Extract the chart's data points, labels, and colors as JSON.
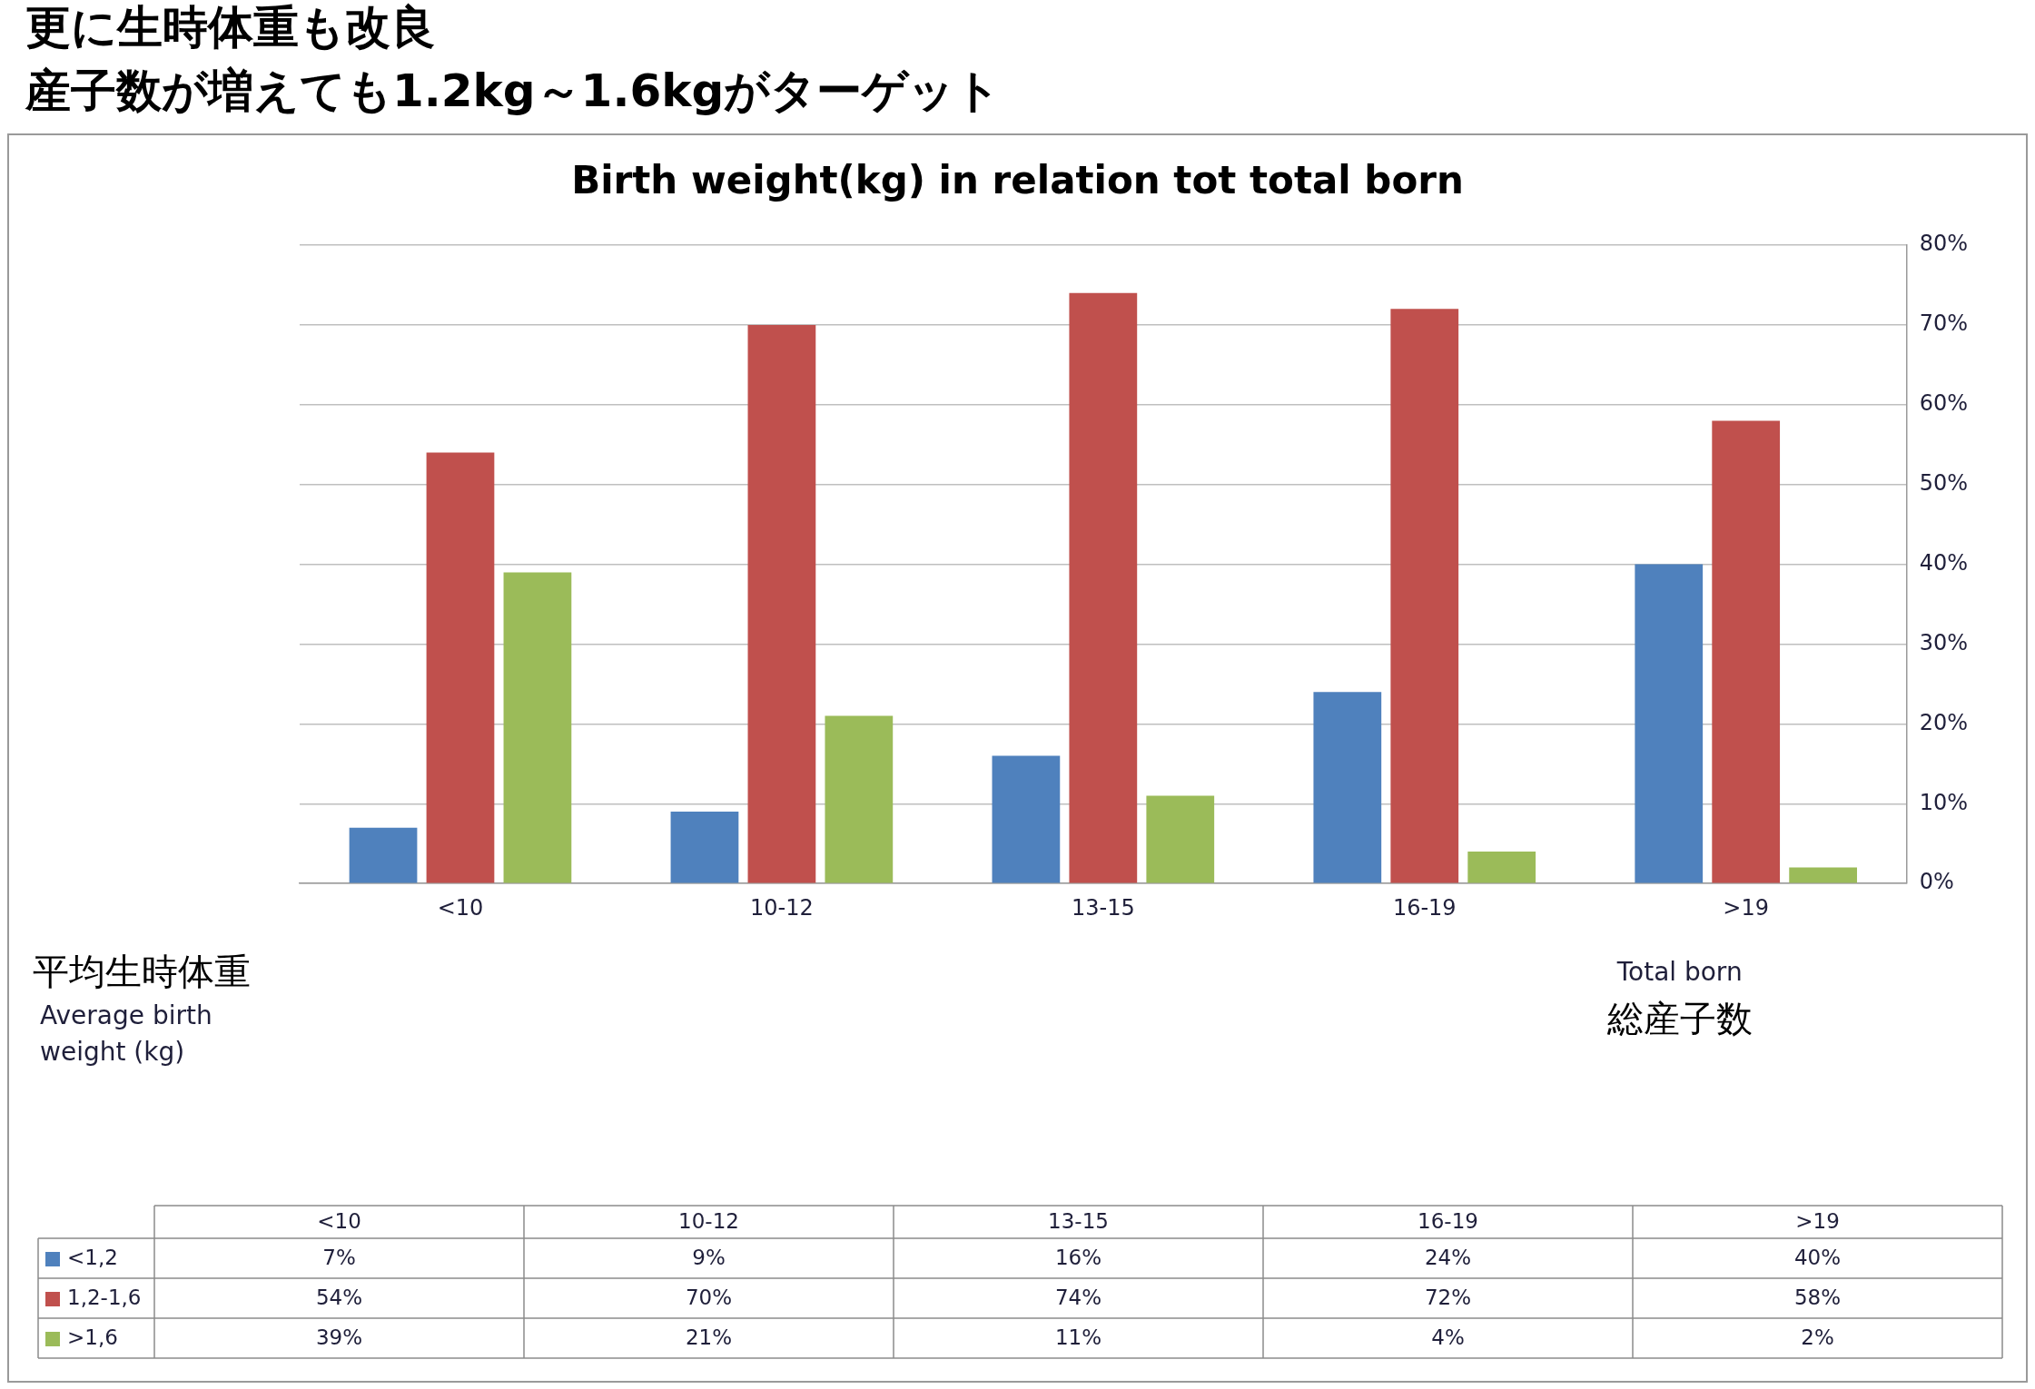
{
  "chart_data": {
    "type": "bar",
    "title": "Birth weight(kg) in relation tot total born",
    "annotations": [
      "更に生時体重も改良",
      "産子数が増えても1.2kg～1.6kgがターゲット"
    ],
    "xlabel": "Total born\n総産子数",
    "legend_title": "平均生時体重\nAverage birth\nweight (kg)",
    "categories": [
      "<10",
      "10-12",
      "13-15",
      "16-19",
      ">19"
    ],
    "series": [
      {
        "name": "<1,2",
        "color": "#4f81bd",
        "values": [
          7,
          9,
          16,
          24,
          40
        ],
        "value_labels": [
          "7%",
          "9%",
          "16%",
          "24%",
          "40%"
        ]
      },
      {
        "name": "1,2-1,6",
        "color": "#c0504d",
        "values": [
          54,
          70,
          74,
          72,
          58
        ],
        "value_labels": [
          "54%",
          "70%",
          "74%",
          "72%",
          "58%"
        ]
      },
      {
        "name": ">1,6",
        "color": "#9bbb59",
        "values": [
          39,
          21,
          11,
          4,
          2
        ],
        "value_labels": [
          "39%",
          "21%",
          "11%",
          "4%",
          "2%"
        ]
      }
    ],
    "ylim": [
      0,
      80
    ],
    "yticks": [
      {
        "value": 0,
        "label": "0%"
      },
      {
        "value": 10,
        "label": "10%"
      },
      {
        "value": 20,
        "label": "20%"
      },
      {
        "value": 30,
        "label": "30%"
      },
      {
        "value": 40,
        "label": "40%"
      },
      {
        "value": 50,
        "label": "50%"
      },
      {
        "value": 60,
        "label": "60%"
      },
      {
        "value": 70,
        "label": "70%"
      },
      {
        "value": 80,
        "label": "80%"
      }
    ],
    "grid": "y",
    "legend": "bottom"
  }
}
